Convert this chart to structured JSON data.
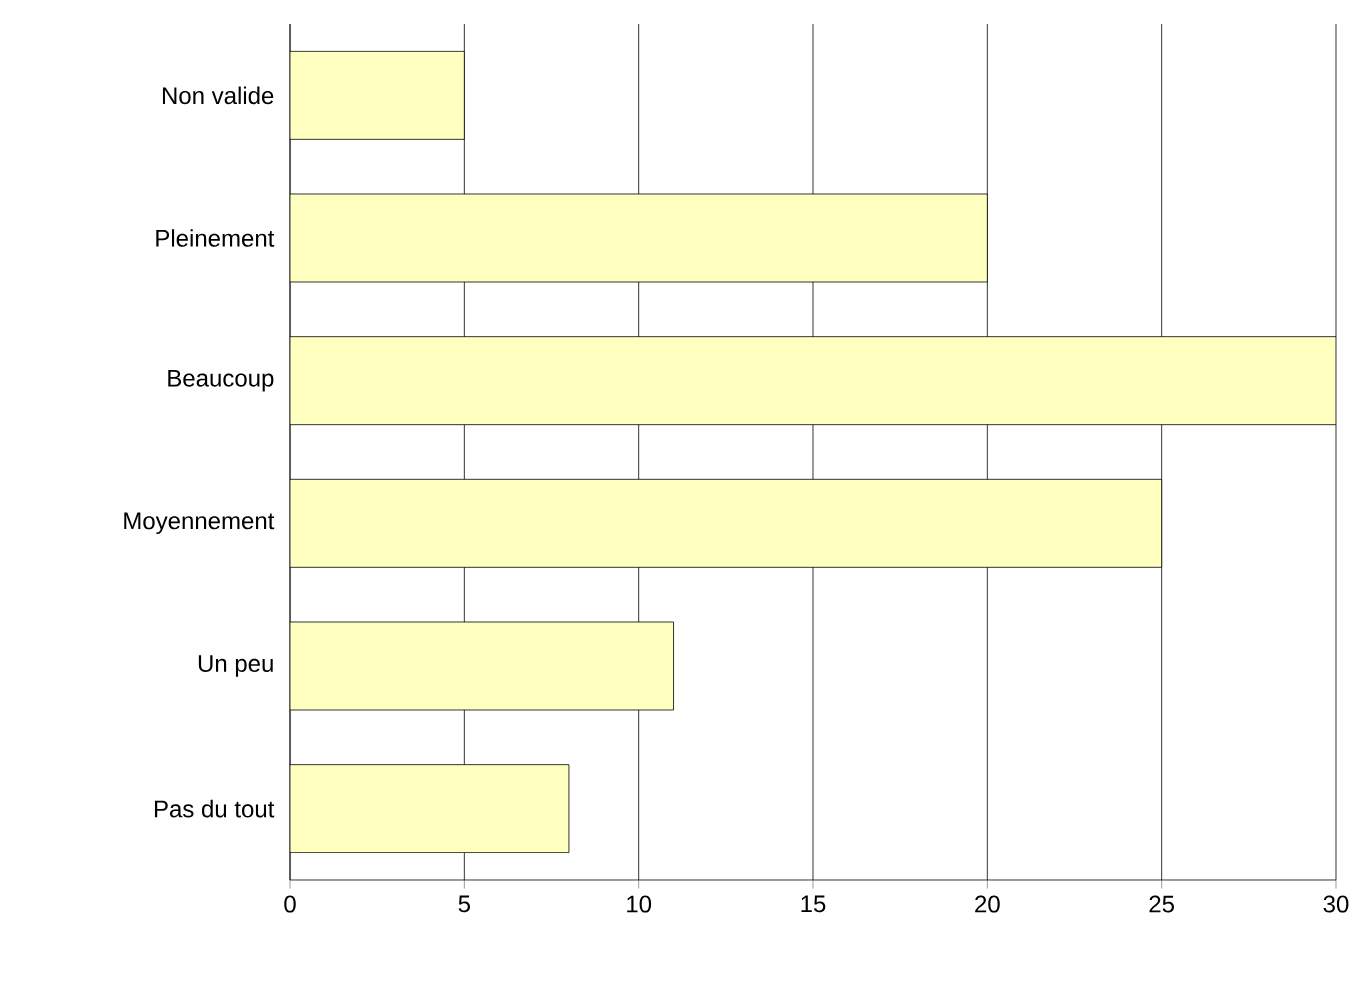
{
  "chart_data": {
    "type": "bar",
    "orientation": "horizontal",
    "categories": [
      "Non valide",
      "Pleinement",
      "Beaucoup",
      "Moyennement",
      "Un peu",
      "Pas du tout"
    ],
    "values": [
      5,
      20,
      30,
      25,
      11,
      8
    ],
    "color": "#ffffc0",
    "xlim": [
      0,
      30
    ],
    "xticks": [
      0,
      5,
      10,
      15,
      20,
      25,
      30
    ],
    "grid": "x"
  }
}
